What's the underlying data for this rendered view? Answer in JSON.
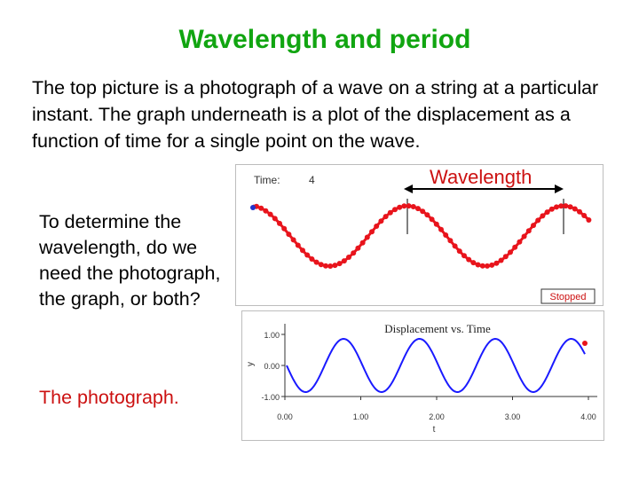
{
  "slide": {
    "title": "Wavelength and period",
    "intro": "The top picture is a photograph of a wave on a string at a particular instant. The graph underneath is a plot of the displacement as a function of time for a single point on the wave.",
    "question": "To determine the wavelength, do we need the photograph, the graph, or both?",
    "answer": "The photograph."
  },
  "simulation": {
    "time_label": "Time:",
    "time_value": "4",
    "wavelength_label": "Wavelength",
    "status_button": "Stopped"
  },
  "graph": {
    "title": "Displacement vs. Time",
    "x_label": "t",
    "y_label": "y",
    "x_ticks": [
      "0.00",
      "1.00",
      "2.00",
      "3.00",
      "4.00"
    ],
    "y_ticks": [
      "1.00",
      "0.00",
      "-1.00"
    ]
  },
  "colors": {
    "title_green": "#11a511",
    "accent_red": "#cc1111",
    "wave_red": "#e8141c",
    "graph_blue": "#1a1aff",
    "dot_blue": "#2233cc"
  }
}
